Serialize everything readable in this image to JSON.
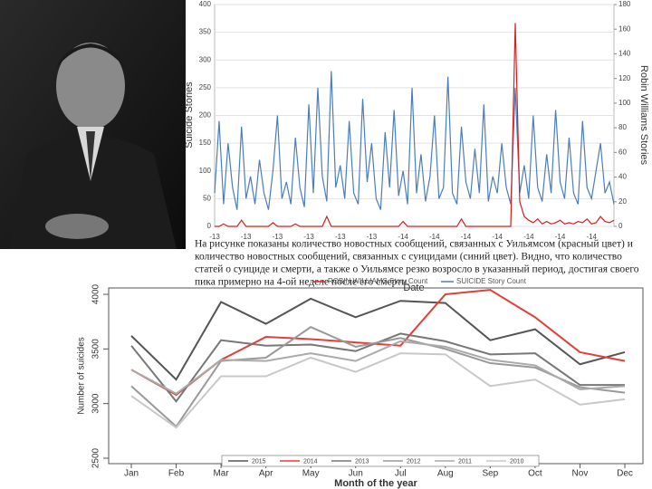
{
  "caption": {
    "lines": [
      "На рисунке показаны количество новостных сообщений, связанных с Уильямсом (красный цвет) и",
      "количество новостных сообщений, связанных с суицидами (синий цвет). Видно, что количество",
      "статей о суициде и смерти, а также о Уильямсе резко возросло в указанный период, достигая своего",
      "пика примерно на 4-ой неделе после его смерти."
    ]
  },
  "chart_data": [
    {
      "type": "line",
      "xlabel": "Date",
      "ylabel": "Suicide Stories",
      "y2label": "Robin Williams Stories",
      "categories": [
        "-13",
        null,
        null,
        null,
        null,
        null,
        null,
        "-13",
        null,
        null,
        null,
        null,
        null,
        null,
        "-13",
        null,
        null,
        null,
        null,
        null,
        null,
        "-13",
        null,
        null,
        null,
        null,
        null,
        null,
        "-13",
        null,
        null,
        null,
        null,
        null,
        null,
        "-13",
        null,
        null,
        null,
        null,
        null,
        null,
        "-14",
        null,
        null,
        null,
        null,
        null,
        null,
        "-14",
        null,
        null,
        null,
        null,
        null,
        null,
        "-14",
        null,
        null,
        null,
        null,
        null,
        null,
        "-14",
        null,
        null,
        null,
        null,
        null,
        null,
        "-14",
        null,
        null,
        null,
        null,
        null,
        null,
        "-14",
        null,
        null,
        null,
        null,
        null,
        null,
        "-14",
        null,
        null,
        null,
        null,
        null
      ],
      "ylim": [
        0,
        400
      ],
      "yticks": [
        0,
        50,
        100,
        150,
        200,
        250,
        300,
        350,
        400
      ],
      "y2lim": [
        0,
        180
      ],
      "y2ticks": [
        0,
        20,
        40,
        60,
        80,
        100,
        120,
        140,
        160,
        180
      ],
      "grid": true,
      "legend": "bottom",
      "series": [
        {
          "name": "SUICIDE Story Count",
          "color": "#4a7ebb",
          "values": [
            60,
            190,
            40,
            150,
            70,
            30,
            180,
            50,
            90,
            40,
            120,
            60,
            30,
            100,
            200,
            50,
            80,
            40,
            160,
            70,
            35,
            220,
            60,
            250,
            90,
            45,
            280,
            70,
            110,
            50,
            190,
            60,
            40,
            230,
            80,
            150,
            50,
            30,
            170,
            70,
            210,
            55,
            100,
            40,
            250,
            60,
            130,
            45,
            90,
            200,
            50,
            70,
            270,
            60,
            40,
            180,
            80,
            50,
            140,
            60,
            220,
            45,
            90,
            60,
            150,
            70,
            40,
            250,
            60,
            110,
            50,
            200,
            70,
            45,
            130,
            60,
            210,
            80,
            50,
            160,
            60,
            40,
            190,
            70,
            50,
            100,
            150,
            60,
            80,
            40
          ]
        },
        {
          "name": "ROBIN WILLIAMS Story Count",
          "color": "#d42020",
          "axis": "y2",
          "values": [
            0,
            0,
            2,
            0,
            0,
            0,
            5,
            0,
            0,
            0,
            0,
            0,
            0,
            3,
            0,
            0,
            0,
            0,
            2,
            0,
            0,
            0,
            0,
            0,
            0,
            8,
            0,
            0,
            0,
            0,
            0,
            0,
            0,
            0,
            0,
            0,
            0,
            0,
            0,
            0,
            0,
            0,
            4,
            0,
            0,
            0,
            0,
            0,
            0,
            0,
            0,
            0,
            0,
            0,
            0,
            6,
            0,
            0,
            0,
            0,
            0,
            0,
            0,
            0,
            0,
            0,
            0,
            165,
            20,
            8,
            5,
            3,
            6,
            2,
            4,
            2,
            3,
            5,
            2,
            3,
            2,
            4,
            3,
            6,
            2,
            3,
            8,
            4,
            3,
            5
          ]
        }
      ]
    },
    {
      "type": "line",
      "xlabel": "Month of the year",
      "ylabel": "Number of suicides",
      "categories": [
        "Jan",
        "Feb",
        "Mar",
        "Apr",
        "May",
        "Jun",
        "Jul",
        "Aug",
        "Sep",
        "Oct",
        "Nov",
        "Dec"
      ],
      "ylim": [
        2500,
        4000
      ],
      "yticks": [
        2500,
        3000,
        3500,
        4000
      ],
      "legend": "bottom",
      "series": [
        {
          "name": "2015",
          "color": "#555555",
          "values": [
            3620,
            3220,
            3930,
            3730,
            3960,
            3790,
            3940,
            3920,
            3580,
            3680,
            3360,
            3470
          ]
        },
        {
          "name": "2014",
          "color": "#e0403a",
          "values": [
            3310,
            3080,
            3400,
            3610,
            3590,
            3560,
            3530,
            4000,
            4040,
            3790,
            3470,
            3390
          ]
        },
        {
          "name": "2013",
          "color": "#777777",
          "values": [
            3530,
            3020,
            3580,
            3530,
            3540,
            3480,
            3640,
            3570,
            3450,
            3460,
            3170,
            3170
          ]
        },
        {
          "name": "2012",
          "color": "#999999",
          "values": [
            3160,
            2790,
            3390,
            3420,
            3700,
            3520,
            3600,
            3500,
            3370,
            3330,
            3150,
            3100
          ]
        },
        {
          "name": "2011",
          "color": "#aaaaaa",
          "values": [
            3310,
            3090,
            3400,
            3390,
            3460,
            3390,
            3570,
            3520,
            3400,
            3350,
            3130,
            3160
          ]
        },
        {
          "name": "2010",
          "color": "#c8c8c8",
          "values": [
            3070,
            2780,
            3250,
            3250,
            3420,
            3290,
            3460,
            3450,
            3160,
            3220,
            2990,
            3040
          ]
        }
      ]
    }
  ]
}
